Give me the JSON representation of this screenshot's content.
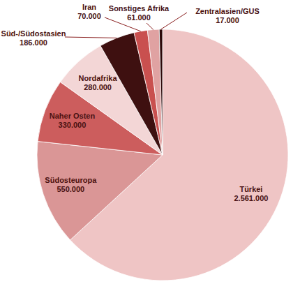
{
  "chart_data": {
    "type": "pie",
    "categories": [
      "Türkei",
      "Südosteuropa",
      "Naher Osten",
      "Nordafrika",
      "Süd-/Südostasien",
      "Iran",
      "Sonstiges Afrika",
      "Zentralasien/GUS"
    ],
    "values": [
      2561000,
      550000,
      330000,
      280000,
      186000,
      70000,
      61000,
      17000
    ],
    "value_labels": [
      "2.561.000",
      "550.000",
      "330.000",
      "280.000",
      "186.000",
      "70.000",
      "61.000",
      "17.000"
    ],
    "colors": [
      "#efc5c5",
      "#da9696",
      "#cc5d5d",
      "#f3d6d6",
      "#3e1010",
      "#c9504f",
      "#e0a2a2",
      "#2c0909"
    ],
    "data_labels": true
  }
}
